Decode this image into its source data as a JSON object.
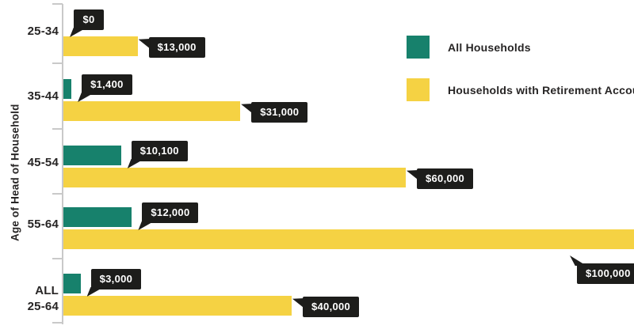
{
  "chart_data": {
    "type": "bar",
    "orientation": "horizontal",
    "title": "",
    "ylabel": "Age of Head of Household",
    "xlabel": "",
    "xlim": [
      0,
      100000
    ],
    "grid": false,
    "legend_position": "top-right",
    "categories": [
      "25-34",
      "35-44",
      "45-54",
      "55-64",
      "ALL 25-64"
    ],
    "category_label_lines": [
      [
        "25-34"
      ],
      [
        "35-44"
      ],
      [
        "45-54"
      ],
      [
        "55-64"
      ],
      [
        "ALL",
        "25-64"
      ]
    ],
    "series": [
      {
        "name": "All Households",
        "color": "#17816c",
        "values": [
          0,
          1400,
          10100,
          12000,
          3000
        ],
        "labels": [
          "$0",
          "$1,400",
          "$10,100",
          "$12,000",
          "$3,000"
        ]
      },
      {
        "name": "Households with Retirement Accounts",
        "color": "#f5d243",
        "values": [
          13000,
          31000,
          60000,
          100000,
          40000
        ],
        "labels": [
          "$13,000",
          "$31,000",
          "$60,000",
          "$100,000",
          "$40,000"
        ]
      }
    ],
    "callout_style": {
      "bg": "#1d1d1b",
      "text_color": "#ffffff"
    },
    "axis_color": "#c9c9c9"
  }
}
